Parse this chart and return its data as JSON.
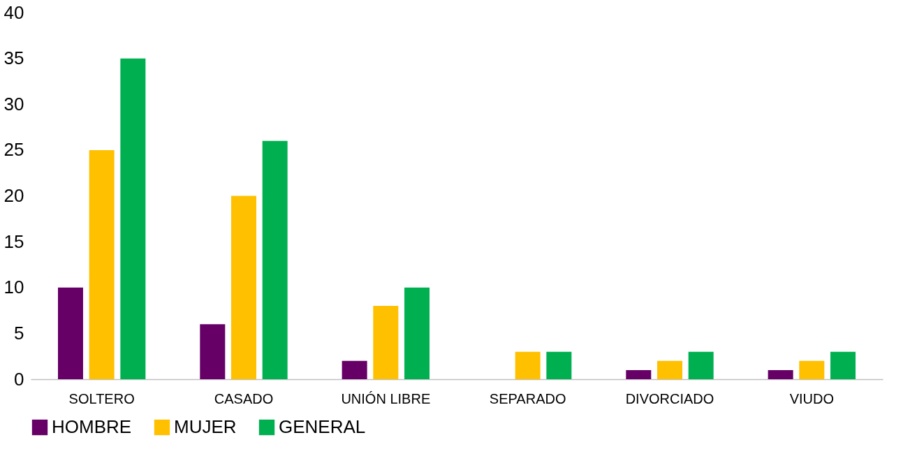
{
  "chart_data": {
    "type": "bar",
    "categories": [
      "SOLTERO",
      "CASADO",
      "UNIÓN LIBRE",
      "SEPARADO",
      "DIVORCIADO",
      "VIUDO"
    ],
    "series": [
      {
        "name": "HOMBRE",
        "color": "#660066",
        "values": [
          10,
          6,
          2,
          0,
          1,
          1
        ]
      },
      {
        "name": "MUJER",
        "color": "#ffc000",
        "values": [
          25,
          20,
          8,
          3,
          2,
          2
        ]
      },
      {
        "name": "GENERAL",
        "color": "#00b050",
        "values": [
          35,
          26,
          10,
          3,
          3,
          3
        ]
      }
    ],
    "ylim": [
      0,
      40
    ],
    "yticks": [
      0,
      5,
      10,
      15,
      20,
      25,
      30,
      35,
      40
    ],
    "grid": false,
    "legend": "bottom"
  }
}
